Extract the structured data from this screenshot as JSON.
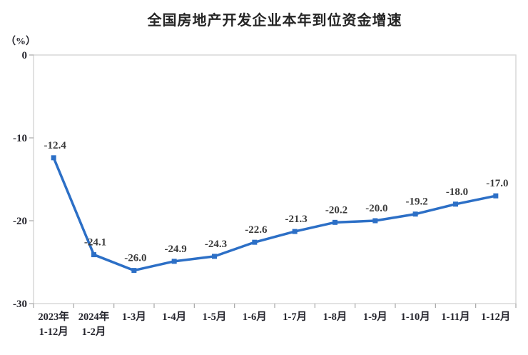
{
  "title": "全国房地产开发企业本年到位资金增速",
  "y_axis_unit": "（%）",
  "colors": {
    "line": "#2C6FC6",
    "marker": "#2C6FC6",
    "plot_border": "#D9D9D9",
    "tick": "#A6A6A6",
    "tick_text": "#26262E",
    "data_label": "#3A3A3A",
    "title_text": "#262626",
    "background": "#FFFFFF"
  },
  "chart_data": {
    "type": "line",
    "title": "全国房地产开发企业本年到位资金增速",
    "ylabel": "（%）",
    "xlabel": "",
    "categories": [
      "2023年\n1-12月",
      "2024年\n1-2月",
      "1-3月",
      "1-4月",
      "1-5月",
      "1-6月",
      "1-7月",
      "1-8月",
      "1-9月",
      "1-10月",
      "1-11月",
      "1-12月"
    ],
    "values": [
      -12.4,
      -24.1,
      -26.0,
      -24.9,
      -24.3,
      -22.6,
      -21.3,
      -20.2,
      -20.0,
      -19.2,
      -18.0,
      -17.0
    ],
    "data_labels": [
      "-12.4",
      "-24.1",
      "-26.0",
      "-24.9",
      "-24.3",
      "-22.6",
      "-21.3",
      "-20.2",
      "-20.0",
      "-19.2",
      "-18.0",
      "-17.0"
    ],
    "ylim": [
      -30,
      0
    ],
    "yticks": [
      0,
      -10,
      -20,
      -30
    ],
    "grid": false,
    "legend_position": "none",
    "marker": "square"
  }
}
